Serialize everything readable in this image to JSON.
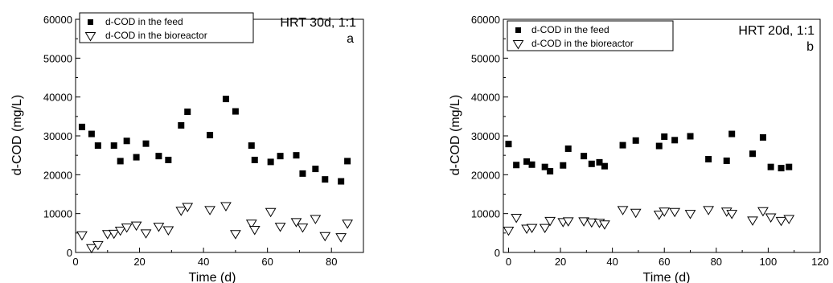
{
  "chart_data": [
    {
      "type": "scatter",
      "panel_label": "a",
      "condition": "HRT 30d, 1:1",
      "xlabel": "Time (d)",
      "ylabel": "d-COD (mg/L)",
      "xlim": [
        0,
        90
      ],
      "ylim": [
        0,
        60000
      ],
      "xticks": [
        0,
        20,
        40,
        60,
        80
      ],
      "yticks": [
        0,
        10000,
        20000,
        30000,
        40000,
        50000,
        60000
      ],
      "grid": false,
      "legend_position": "top-left",
      "series": [
        {
          "name": "d-COD in the feed",
          "marker": "filled-square",
          "x": [
            2,
            5,
            7,
            12,
            14,
            16,
            19,
            22,
            26,
            29,
            33,
            35,
            42,
            47,
            50,
            55,
            56,
            61,
            64,
            69,
            71,
            75,
            78,
            83,
            85
          ],
          "y": [
            32300,
            30500,
            27500,
            27500,
            23500,
            28700,
            24500,
            28000,
            24800,
            23800,
            32700,
            36200,
            30200,
            39500,
            36300,
            27500,
            23800,
            23300,
            24800,
            25000,
            20300,
            21500,
            18800,
            18300,
            23500
          ]
        },
        {
          "name": "d-COD in the bioreactor",
          "marker": "open-triangle-down",
          "x": [
            2,
            5,
            7,
            10,
            12,
            14,
            16,
            19,
            22,
            26,
            29,
            33,
            35,
            42,
            47,
            50,
            55,
            56,
            61,
            64,
            69,
            71,
            75,
            78,
            83,
            85
          ],
          "y": [
            4500,
            1200,
            2000,
            4800,
            4900,
            5700,
            6500,
            7000,
            5000,
            6700,
            5800,
            10800,
            11800,
            11000,
            12000,
            4800,
            7500,
            5900,
            10500,
            6700,
            7900,
            6500,
            8700,
            4300,
            4000,
            7500
          ]
        }
      ]
    },
    {
      "type": "scatter",
      "panel_label": "b",
      "condition": "HRT 20d, 1:1",
      "xlabel": "Time (d)",
      "ylabel": "d-COD (mg/L)",
      "xlim": [
        -2,
        120
      ],
      "ylim": [
        0,
        60000
      ],
      "xticks": [
        0,
        20,
        40,
        60,
        80,
        100,
        120
      ],
      "yticks": [
        0,
        10000,
        20000,
        30000,
        40000,
        50000,
        60000
      ],
      "grid": false,
      "legend_position": "top-left",
      "series": [
        {
          "name": "d-COD in the feed",
          "marker": "filled-square",
          "x": [
            0,
            3,
            7,
            9,
            14,
            16,
            21,
            23,
            29,
            32,
            35,
            37,
            44,
            49,
            58,
            60,
            64,
            70,
            77,
            84,
            86,
            94,
            98,
            101,
            105,
            108
          ],
          "y": [
            27900,
            22500,
            23400,
            22600,
            22000,
            20900,
            22400,
            26700,
            24800,
            22800,
            23200,
            22200,
            27600,
            28800,
            27400,
            29800,
            28900,
            29900,
            24000,
            23600,
            30500,
            25400,
            29600,
            22000,
            21700,
            22000
          ]
        },
        {
          "name": "d-COD in the bioreactor",
          "marker": "open-triangle-down",
          "x": [
            0,
            3,
            7,
            9,
            14,
            16,
            21,
            23,
            29,
            32,
            35,
            37,
            44,
            49,
            58,
            60,
            64,
            70,
            77,
            84,
            86,
            94,
            98,
            101,
            105,
            108
          ],
          "y": [
            5700,
            9000,
            6200,
            6400,
            6400,
            8200,
            7900,
            8100,
            8100,
            7800,
            7700,
            7300,
            11000,
            10300,
            9800,
            10600,
            10500,
            10000,
            11000,
            10600,
            10000,
            8300,
            10700,
            9100,
            8200,
            8700
          ]
        }
      ]
    }
  ]
}
